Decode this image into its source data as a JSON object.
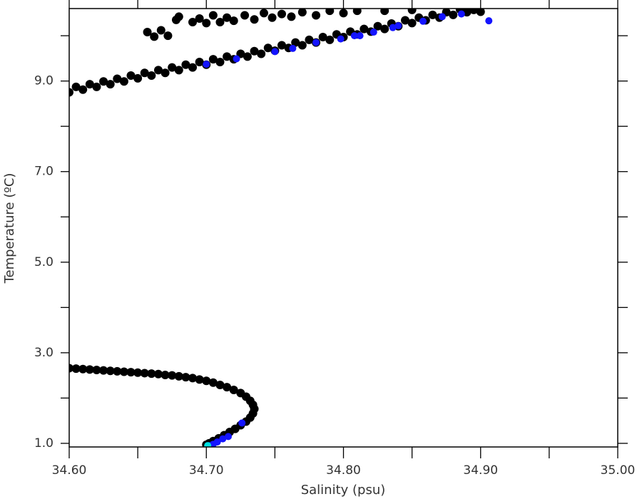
{
  "chart_data": {
    "type": "scatter",
    "xlabel": "Salinity (psu)",
    "ylabel": "Temperature (ºC)",
    "xlim": [
      34.6,
      35.0
    ],
    "ylim": [
      0.92,
      10.6
    ],
    "xticks": [
      {
        "value": 34.6,
        "label": "34.60"
      },
      {
        "value": 34.7,
        "label": "34.70"
      },
      {
        "value": 34.8,
        "label": "34.80"
      },
      {
        "value": 34.9,
        "label": "34.90"
      },
      {
        "value": 35.0,
        "label": "35.00"
      }
    ],
    "xminorticks": [
      34.65,
      34.75,
      34.85,
      34.95
    ],
    "yticks": [
      {
        "value": 1,
        "label": "1.0"
      },
      {
        "value": 3,
        "label": "3.0"
      },
      {
        "value": 5,
        "label": "5.0"
      },
      {
        "value": 7,
        "label": "7.0"
      },
      {
        "value": 9,
        "label": "9.0"
      }
    ],
    "yminorticks": [
      2,
      4,
      6,
      8,
      10
    ],
    "series": [
      {
        "color": "#000000",
        "x": [
          34.6,
          34.61,
          34.62,
          34.63,
          34.64,
          34.65,
          34.66,
          34.67,
          34.68,
          34.69,
          34.7,
          34.71,
          34.72,
          34.73,
          34.74,
          34.75,
          34.76,
          34.77,
          34.78,
          34.79,
          34.8,
          34.81,
          34.82,
          34.83,
          34.84,
          34.85,
          34.86,
          34.87,
          34.88,
          34.89,
          34.605,
          34.615,
          34.625,
          34.635,
          34.645,
          34.655,
          34.665,
          34.675,
          34.685,
          34.695,
          34.705,
          34.715,
          34.725,
          34.735,
          34.745,
          34.755,
          34.765,
          34.775,
          34.785,
          34.795,
          34.805,
          34.815,
          34.825,
          34.835,
          34.845,
          34.855,
          34.865,
          34.875,
          34.885,
          34.657,
          34.662,
          34.667,
          34.672,
          34.678,
          34.68,
          34.69,
          34.695,
          34.7,
          34.705,
          34.71,
          34.715,
          34.72,
          34.728,
          34.735,
          34.742,
          34.748,
          34.755,
          34.762,
          34.77,
          34.78,
          34.79,
          34.8,
          34.81,
          34.83,
          34.85,
          34.895,
          34.9,
          34.6,
          34.605,
          34.61,
          34.615,
          34.62,
          34.625,
          34.63,
          34.635,
          34.64,
          34.645,
          34.65,
          34.655,
          34.66,
          34.665,
          34.67,
          34.675,
          34.68,
          34.685,
          34.69,
          34.695,
          34.7,
          34.705,
          34.71,
          34.715,
          34.72,
          34.725,
          34.729,
          34.732,
          34.734,
          34.735,
          34.734,
          34.732,
          34.729,
          34.725,
          34.721,
          34.717,
          34.713,
          34.709,
          34.705,
          34.702,
          34.7
        ],
        "values": [
          8.75,
          8.81,
          8.87,
          8.93,
          8.99,
          9.06,
          9.12,
          9.18,
          9.24,
          9.3,
          9.36,
          9.42,
          9.48,
          9.54,
          9.6,
          9.67,
          9.73,
          9.79,
          9.85,
          9.91,
          9.97,
          10.03,
          10.09,
          10.15,
          10.21,
          10.28,
          10.34,
          10.4,
          10.46,
          10.52,
          8.87,
          8.93,
          8.99,
          9.05,
          9.12,
          9.18,
          9.24,
          9.3,
          9.36,
          9.42,
          9.48,
          9.54,
          9.6,
          9.66,
          9.73,
          9.79,
          9.85,
          9.91,
          9.97,
          10.03,
          10.09,
          10.15,
          10.21,
          10.27,
          10.34,
          10.4,
          10.46,
          10.52,
          10.58,
          10.08,
          9.98,
          10.12,
          10.0,
          10.35,
          10.42,
          10.3,
          10.38,
          10.28,
          10.45,
          10.3,
          10.4,
          10.33,
          10.45,
          10.36,
          10.5,
          10.4,
          10.48,
          10.42,
          10.52,
          10.45,
          10.55,
          10.5,
          10.55,
          10.55,
          10.57,
          10.57,
          10.53,
          2.66,
          2.65,
          2.64,
          2.63,
          2.62,
          2.61,
          2.6,
          2.59,
          2.58,
          2.57,
          2.56,
          2.55,
          2.54,
          2.53,
          2.51,
          2.5,
          2.48,
          2.46,
          2.44,
          2.41,
          2.38,
          2.34,
          2.29,
          2.24,
          2.18,
          2.11,
          2.03,
          1.94,
          1.85,
          1.76,
          1.66,
          1.57,
          1.48,
          1.4,
          1.32,
          1.25,
          1.18,
          1.11,
          1.05,
          1.0,
          0.97
        ]
      },
      {
        "color": "#1414ff",
        "x": [
          34.7,
          34.722,
          34.75,
          34.763,
          34.78,
          34.798,
          34.808,
          34.812,
          34.822,
          34.836,
          34.84,
          34.858,
          34.872,
          34.886,
          34.906,
          34.726,
          34.716,
          34.712,
          34.708,
          34.705,
          34.702
        ],
        "values": [
          9.37,
          9.49,
          9.65,
          9.72,
          9.85,
          9.93,
          10.0,
          10.0,
          10.08,
          10.18,
          10.22,
          10.32,
          10.42,
          10.48,
          10.33,
          1.45,
          1.15,
          1.1,
          1.03,
          0.98,
          0.95
        ]
      },
      {
        "color": "#00e0e0",
        "x": [
          34.701
        ],
        "values": [
          0.95
        ]
      }
    ]
  }
}
